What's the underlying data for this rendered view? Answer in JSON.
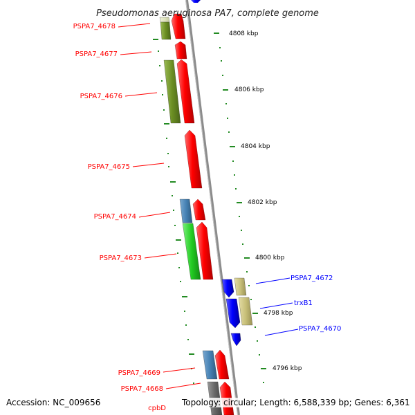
{
  "title": "Pseudomonas aeruginosa PA7, complete genome",
  "footer": {
    "accession": "Accession: NC_009656",
    "topology": "Topology: circular; Length: 6,588,339 bp; Genes: 6,361"
  },
  "colors": {
    "forward_gene": "#ff0000",
    "reverse_gene": "#0000ff",
    "olive_feature": "#6b8e23",
    "khaki_feature": "#c8c07a",
    "steelblue_feature": "#4682b4",
    "green_feature": "#22cc22",
    "gray_feature": "#666666",
    "backbone": "#8c8c8c",
    "tick": "#228b22"
  },
  "scale_labels": [
    "4808 kbp",
    "4806 kbp",
    "4804 kbp",
    "4802 kbp",
    "4800 kbp",
    "4798 kbp",
    "4796 kbp"
  ],
  "left_labels": [
    "PSPA7_4678",
    "PSPA7_4677",
    "PSPA7_4676",
    "PSPA7_4675",
    "PSPA7_4674",
    "PSPA7_4673",
    "PSPA7_4669",
    "PSPA7_4668",
    "cpbD"
  ],
  "right_labels": [
    "PSPA7_4672",
    "trxB1",
    "PSPA7_4670"
  ]
}
